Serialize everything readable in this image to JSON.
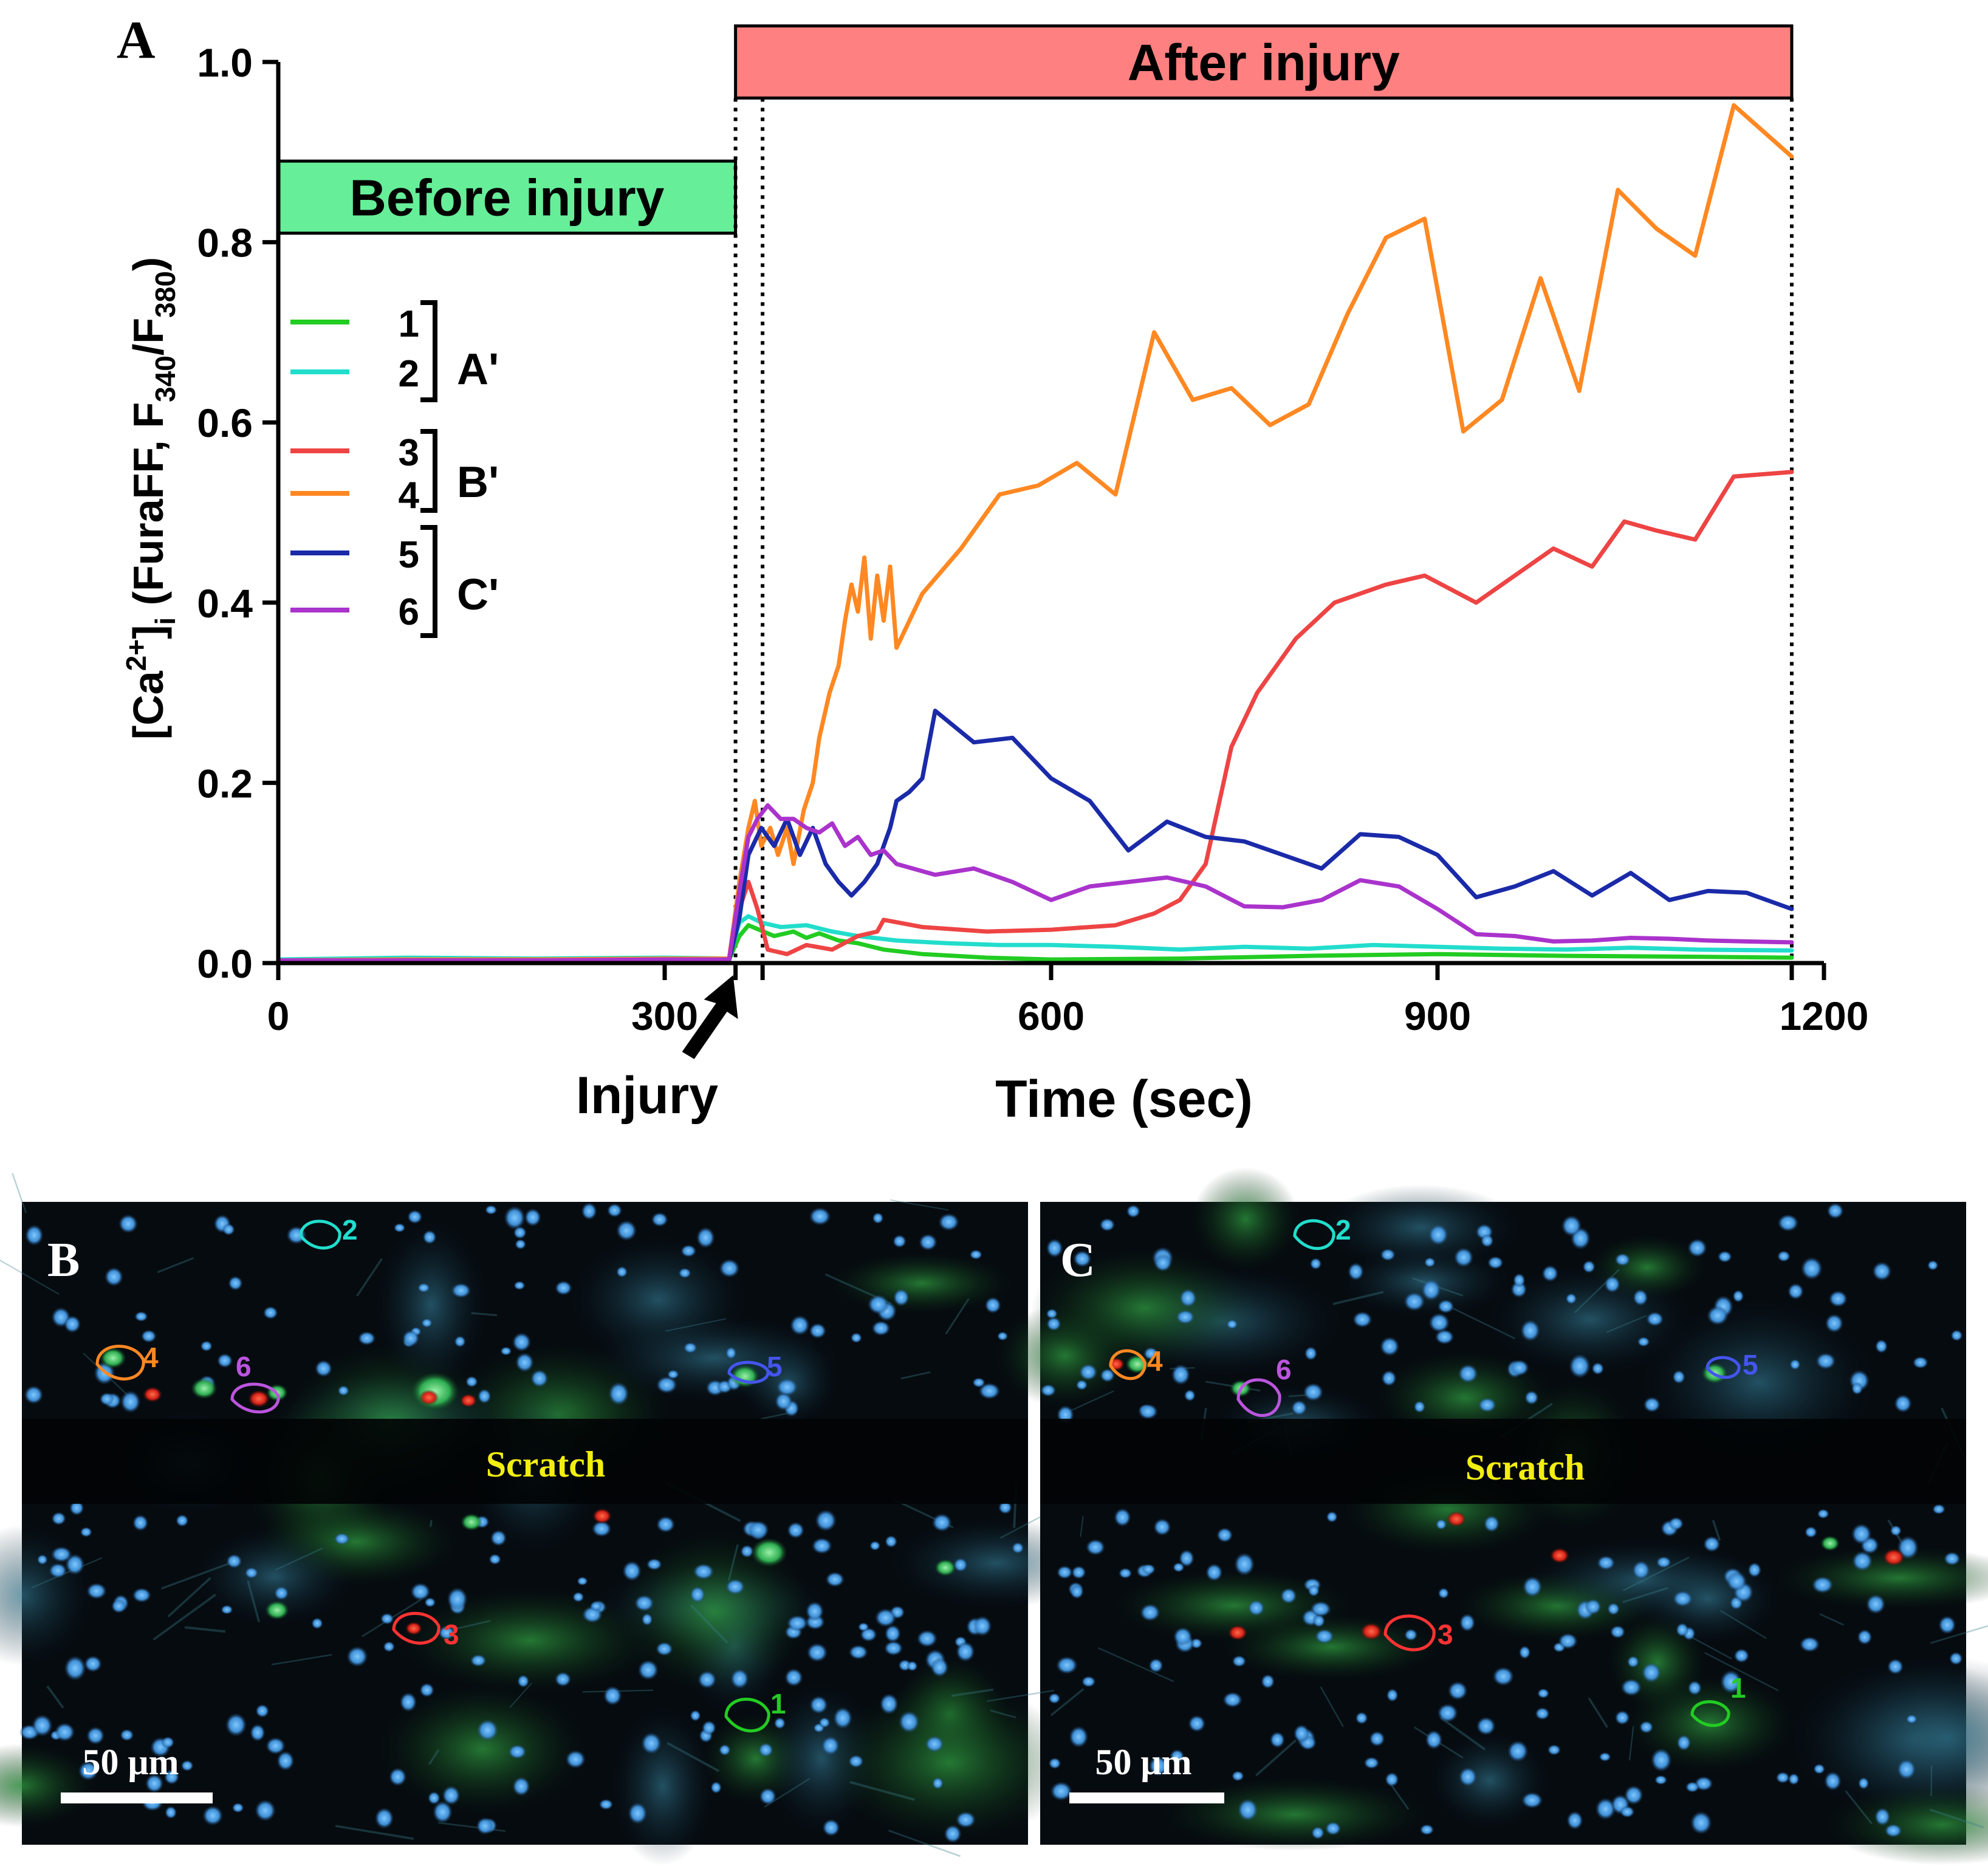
{
  "panels": {
    "a_label": "A",
    "b_label": "B",
    "c_label": "C"
  },
  "chart_data": {
    "type": "line",
    "title": "",
    "xlabel": "Time (sec)",
    "ylabel_parts": {
      "open": "[Ca",
      "charge": "2+",
      "close": "]",
      "sub_i": "i",
      "mid": " (FuraFF, F",
      "sub1": "340",
      "slash": "/F",
      "sub2": "380",
      "end": ")"
    },
    "xlim": [
      0,
      1200
    ],
    "ylim": [
      0,
      1.0
    ],
    "xticks": [
      0,
      300,
      600,
      900,
      1200
    ],
    "xtick_labels": [
      "0",
      "300",
      "600",
      "900",
      "1200"
    ],
    "yticks": [
      0.0,
      0.2,
      0.4,
      0.6,
      0.8,
      1.0
    ],
    "ytick_labels": [
      "0.0",
      "0.2",
      "0.4",
      "0.6",
      "0.8",
      "1.0"
    ],
    "grid": false,
    "legend_position": "left",
    "phase_before": {
      "label": "Before injury",
      "color": "#66ee99",
      "x0": 0,
      "x1": 355,
      "y0": 0.81,
      "y1": 0.89
    },
    "phase_after": {
      "label": "After injury",
      "color": "#ff8080",
      "x0": 355,
      "x1": 1175,
      "y0": 0.96,
      "y1": 1.04
    },
    "vlines": [
      355,
      376,
      1175
    ],
    "injury_annotation": {
      "text": "Injury",
      "x": 355
    },
    "groups": [
      {
        "label": "A'",
        "members": [
          "1",
          "2"
        ]
      },
      {
        "label": "B'",
        "members": [
          "3",
          "4"
        ]
      },
      {
        "label": "C'",
        "members": [
          "5",
          "6"
        ]
      }
    ],
    "series": [
      {
        "name": "1",
        "color": "#22cc22",
        "points": [
          [
            0,
            0.002
          ],
          [
            100,
            0.003
          ],
          [
            200,
            0.003
          ],
          [
            300,
            0.004
          ],
          [
            350,
            0.004
          ],
          [
            358,
            0.03
          ],
          [
            365,
            0.042
          ],
          [
            375,
            0.036
          ],
          [
            385,
            0.03
          ],
          [
            400,
            0.035
          ],
          [
            410,
            0.028
          ],
          [
            420,
            0.033
          ],
          [
            435,
            0.025
          ],
          [
            450,
            0.022
          ],
          [
            470,
            0.015
          ],
          [
            500,
            0.01
          ],
          [
            550,
            0.006
          ],
          [
            600,
            0.004
          ],
          [
            700,
            0.005
          ],
          [
            800,
            0.008
          ],
          [
            900,
            0.01
          ],
          [
            1000,
            0.008
          ],
          [
            1100,
            0.007
          ],
          [
            1175,
            0.006
          ]
        ]
      },
      {
        "name": "2",
        "color": "#22ddcc",
        "points": [
          [
            0,
            0.004
          ],
          [
            100,
            0.006
          ],
          [
            200,
            0.005
          ],
          [
            300,
            0.006
          ],
          [
            350,
            0.005
          ],
          [
            358,
            0.045
          ],
          [
            365,
            0.052
          ],
          [
            375,
            0.045
          ],
          [
            390,
            0.04
          ],
          [
            410,
            0.042
          ],
          [
            430,
            0.035
          ],
          [
            450,
            0.03
          ],
          [
            480,
            0.025
          ],
          [
            520,
            0.022
          ],
          [
            560,
            0.02
          ],
          [
            600,
            0.02
          ],
          [
            650,
            0.018
          ],
          [
            700,
            0.015
          ],
          [
            750,
            0.018
          ],
          [
            800,
            0.016
          ],
          [
            850,
            0.02
          ],
          [
            900,
            0.018
          ],
          [
            950,
            0.016
          ],
          [
            1000,
            0.015
          ],
          [
            1050,
            0.017
          ],
          [
            1100,
            0.015
          ],
          [
            1175,
            0.014
          ]
        ]
      },
      {
        "name": "3",
        "color": "#ee4444",
        "points": [
          [
            0,
            0.003
          ],
          [
            100,
            0.004
          ],
          [
            200,
            0.004
          ],
          [
            300,
            0.004
          ],
          [
            350,
            0.004
          ],
          [
            358,
            0.06
          ],
          [
            365,
            0.09
          ],
          [
            372,
            0.06
          ],
          [
            380,
            0.015
          ],
          [
            395,
            0.01
          ],
          [
            410,
            0.02
          ],
          [
            430,
            0.015
          ],
          [
            450,
            0.03
          ],
          [
            465,
            0.035
          ],
          [
            470,
            0.048
          ],
          [
            500,
            0.04
          ],
          [
            550,
            0.035
          ],
          [
            600,
            0.037
          ],
          [
            650,
            0.042
          ],
          [
            680,
            0.055
          ],
          [
            700,
            0.07
          ],
          [
            720,
            0.11
          ],
          [
            740,
            0.24
          ],
          [
            760,
            0.3
          ],
          [
            790,
            0.36
          ],
          [
            820,
            0.4
          ],
          [
            860,
            0.42
          ],
          [
            890,
            0.43
          ],
          [
            930,
            0.4
          ],
          [
            960,
            0.43
          ],
          [
            990,
            0.46
          ],
          [
            1020,
            0.44
          ],
          [
            1045,
            0.49
          ],
          [
            1070,
            0.48
          ],
          [
            1100,
            0.47
          ],
          [
            1130,
            0.54
          ],
          [
            1175,
            0.545
          ]
        ]
      },
      {
        "name": "4",
        "color": "#ff8822",
        "points": [
          [
            0,
            0.003
          ],
          [
            100,
            0.004
          ],
          [
            200,
            0.004
          ],
          [
            300,
            0.005
          ],
          [
            350,
            0.005
          ],
          [
            358,
            0.09
          ],
          [
            365,
            0.15
          ],
          [
            370,
            0.18
          ],
          [
            375,
            0.13
          ],
          [
            382,
            0.15
          ],
          [
            388,
            0.12
          ],
          [
            395,
            0.15
          ],
          [
            400,
            0.11
          ],
          [
            408,
            0.17
          ],
          [
            415,
            0.2
          ],
          [
            420,
            0.25
          ],
          [
            428,
            0.3
          ],
          [
            435,
            0.33
          ],
          [
            440,
            0.38
          ],
          [
            445,
            0.42
          ],
          [
            450,
            0.39
          ],
          [
            455,
            0.45
          ],
          [
            460,
            0.36
          ],
          [
            465,
            0.43
          ],
          [
            470,
            0.38
          ],
          [
            475,
            0.44
          ],
          [
            480,
            0.35
          ],
          [
            500,
            0.41
          ],
          [
            530,
            0.46
          ],
          [
            560,
            0.52
          ],
          [
            590,
            0.53
          ],
          [
            620,
            0.555
          ],
          [
            650,
            0.52
          ],
          [
            680,
            0.7
          ],
          [
            710,
            0.625
          ],
          [
            740,
            0.638
          ],
          [
            770,
            0.597
          ],
          [
            800,
            0.62
          ],
          [
            830,
            0.72
          ],
          [
            860,
            0.805
          ],
          [
            890,
            0.826
          ],
          [
            920,
            0.59
          ],
          [
            950,
            0.625
          ],
          [
            980,
            0.76
          ],
          [
            1010,
            0.635
          ],
          [
            1040,
            0.858
          ],
          [
            1070,
            0.815
          ],
          [
            1100,
            0.785
          ],
          [
            1130,
            0.952
          ],
          [
            1175,
            0.895
          ]
        ]
      },
      {
        "name": "5",
        "color": "#1a2aa8",
        "points": [
          [
            0,
            0.002
          ],
          [
            100,
            0.003
          ],
          [
            200,
            0.003
          ],
          [
            300,
            0.003
          ],
          [
            350,
            0.003
          ],
          [
            358,
            0.05
          ],
          [
            365,
            0.12
          ],
          [
            375,
            0.15
          ],
          [
            385,
            0.13
          ],
          [
            395,
            0.16
          ],
          [
            405,
            0.12
          ],
          [
            415,
            0.15
          ],
          [
            425,
            0.11
          ],
          [
            435,
            0.09
          ],
          [
            445,
            0.075
          ],
          [
            455,
            0.09
          ],
          [
            465,
            0.11
          ],
          [
            475,
            0.15
          ],
          [
            480,
            0.18
          ],
          [
            490,
            0.19
          ],
          [
            500,
            0.205
          ],
          [
            510,
            0.28
          ],
          [
            540,
            0.245
          ],
          [
            570,
            0.25
          ],
          [
            600,
            0.205
          ],
          [
            630,
            0.18
          ],
          [
            660,
            0.125
          ],
          [
            690,
            0.157
          ],
          [
            720,
            0.14
          ],
          [
            750,
            0.135
          ],
          [
            780,
            0.12
          ],
          [
            810,
            0.105
          ],
          [
            840,
            0.143
          ],
          [
            870,
            0.14
          ],
          [
            900,
            0.12
          ],
          [
            930,
            0.073
          ],
          [
            960,
            0.085
          ],
          [
            990,
            0.102
          ],
          [
            1020,
            0.075
          ],
          [
            1050,
            0.1
          ],
          [
            1080,
            0.07
          ],
          [
            1110,
            0.08
          ],
          [
            1140,
            0.078
          ],
          [
            1175,
            0.06
          ]
        ]
      },
      {
        "name": "6",
        "color": "#aa33cc",
        "points": [
          [
            0,
            0.003
          ],
          [
            100,
            0.003
          ],
          [
            200,
            0.003
          ],
          [
            300,
            0.004
          ],
          [
            350,
            0.004
          ],
          [
            358,
            0.08
          ],
          [
            365,
            0.14
          ],
          [
            372,
            0.16
          ],
          [
            380,
            0.175
          ],
          [
            390,
            0.16
          ],
          [
            400,
            0.16
          ],
          [
            410,
            0.15
          ],
          [
            420,
            0.145
          ],
          [
            430,
            0.155
          ],
          [
            440,
            0.13
          ],
          [
            450,
            0.14
          ],
          [
            460,
            0.12
          ],
          [
            470,
            0.125
          ],
          [
            480,
            0.11
          ],
          [
            510,
            0.098
          ],
          [
            540,
            0.105
          ],
          [
            570,
            0.09
          ],
          [
            600,
            0.07
          ],
          [
            630,
            0.085
          ],
          [
            660,
            0.09
          ],
          [
            690,
            0.095
          ],
          [
            720,
            0.085
          ],
          [
            750,
            0.063
          ],
          [
            780,
            0.062
          ],
          [
            810,
            0.07
          ],
          [
            840,
            0.092
          ],
          [
            870,
            0.085
          ],
          [
            900,
            0.06
          ],
          [
            930,
            0.032
          ],
          [
            960,
            0.03
          ],
          [
            990,
            0.024
          ],
          [
            1020,
            0.025
          ],
          [
            1050,
            0.028
          ],
          [
            1080,
            0.027
          ],
          [
            1110,
            0.025
          ],
          [
            1140,
            0.024
          ],
          [
            1175,
            0.023
          ]
        ]
      }
    ]
  },
  "micrographs": {
    "scratch_label": "Scratch",
    "scale_label": "50 μm",
    "roi_labels": [
      "1",
      "2",
      "3",
      "4",
      "5",
      "6"
    ]
  }
}
